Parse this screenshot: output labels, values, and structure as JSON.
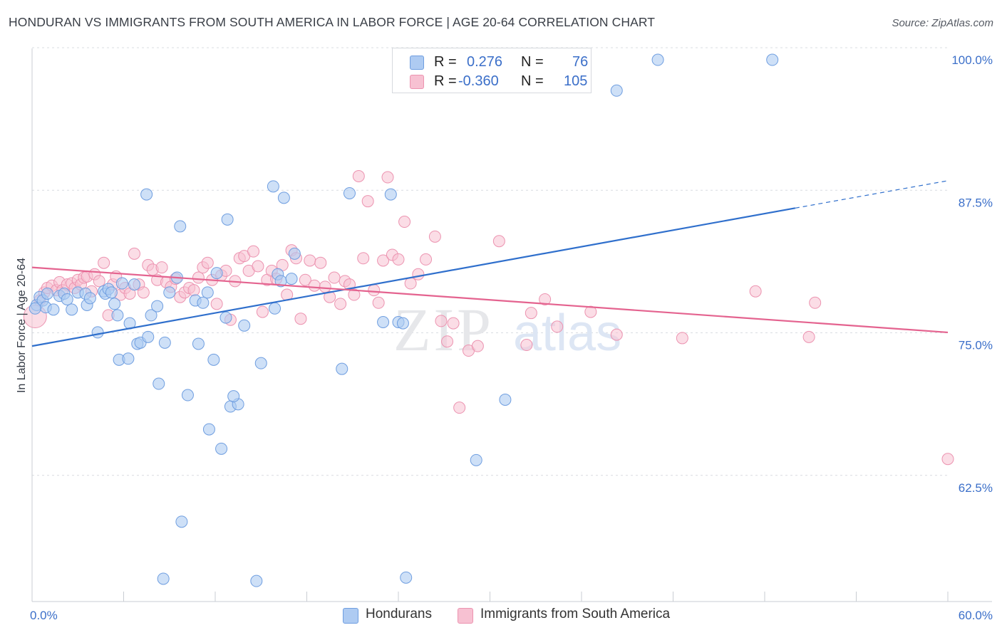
{
  "title": "HONDURAN VS IMMIGRANTS FROM SOUTH AMERICA IN LABOR FORCE | AGE 20-64 CORRELATION CHART",
  "source": "Source: ZipAtlas.com",
  "watermark": {
    "zip": "ZIP",
    "atlas": "atlas"
  },
  "legend": {
    "r_label": "R =",
    "n_label": "N =",
    "rows": [
      {
        "r": "0.276",
        "n": "76"
      },
      {
        "r": "-0.360",
        "n": "105"
      }
    ]
  },
  "bottom_legend": [
    "Hondurans",
    "Immigrants from South America"
  ],
  "colors": {
    "blue_fill": "#aecbf2",
    "blue_stroke": "#6f9ee0",
    "blue_line": "#2f6fcc",
    "pink_fill": "#f7c1d2",
    "pink_stroke": "#ec93b0",
    "pink_line": "#e4638f",
    "label": "#3b6fc9",
    "grid": "#d9dce1"
  },
  "chart_data": {
    "type": "scatter",
    "xlabel": "",
    "ylabel": "In Labor Force | Age 20-64",
    "xlim": [
      0,
      60
    ],
    "ylim": [
      52.5,
      101.5
    ],
    "x_tick_labels": [
      {
        "value": 0,
        "label": "0.0%"
      },
      {
        "value": 60,
        "label": "60.0%"
      }
    ],
    "y_tick_labels": [
      {
        "value": 100,
        "label": "100.0%"
      },
      {
        "value": 87.5,
        "label": "87.5%"
      },
      {
        "value": 75,
        "label": "75.0%"
      },
      {
        "value": 62.5,
        "label": "62.5%"
      }
    ],
    "x_minor_ticks": [
      6,
      12,
      18,
      24,
      30,
      36,
      42,
      48,
      54
    ],
    "grid": true,
    "legend_position": "top-center",
    "series": [
      {
        "name": "Hondurans",
        "r": 0.276,
        "n": 76,
        "trend": {
          "x0": 0,
          "y0": 74.9,
          "x1": 50,
          "y1": 87.0,
          "dash_to_x": 60,
          "dash_to_y": 89.4
        },
        "points": [
          [
            0.3,
            78.5
          ],
          [
            0.5,
            79.2
          ],
          [
            0.7,
            78.9
          ],
          [
            0.9,
            78.3
          ],
          [
            1.0,
            79.5
          ],
          [
            1.4,
            78.1
          ],
          [
            1.8,
            79.3
          ],
          [
            2.1,
            79.5
          ],
          [
            2.3,
            79.0
          ],
          [
            2.6,
            78.1
          ],
          [
            3.0,
            79.6
          ],
          [
            3.5,
            79.5
          ],
          [
            3.6,
            78.5
          ],
          [
            3.8,
            79.1
          ],
          [
            4.3,
            76.1
          ],
          [
            4.7,
            79.7
          ],
          [
            4.8,
            79.5
          ],
          [
            5.0,
            79.9
          ],
          [
            5.2,
            79.6
          ],
          [
            5.4,
            78.6
          ],
          [
            5.6,
            77.6
          ],
          [
            5.7,
            73.7
          ],
          [
            5.9,
            80.4
          ],
          [
            6.3,
            73.8
          ],
          [
            6.4,
            76.9
          ],
          [
            6.7,
            80.3
          ],
          [
            6.9,
            75.1
          ],
          [
            7.1,
            75.2
          ],
          [
            7.5,
            88.2
          ],
          [
            7.6,
            75.7
          ],
          [
            7.8,
            77.6
          ],
          [
            8.2,
            78.4
          ],
          [
            8.3,
            71.6
          ],
          [
            8.6,
            54.5
          ],
          [
            8.7,
            75.2
          ],
          [
            9.0,
            79.6
          ],
          [
            9.5,
            80.9
          ],
          [
            9.7,
            85.4
          ],
          [
            9.8,
            59.5
          ],
          [
            10.2,
            70.6
          ],
          [
            10.7,
            78.9
          ],
          [
            10.9,
            75.1
          ],
          [
            11.2,
            78.7
          ],
          [
            11.5,
            79.6
          ],
          [
            11.6,
            67.6
          ],
          [
            11.9,
            73.7
          ],
          [
            12.1,
            81.3
          ],
          [
            12.7,
            77.4
          ],
          [
            12.8,
            86.0
          ],
          [
            13.0,
            69.6
          ],
          [
            13.5,
            69.8
          ],
          [
            13.9,
            76.7
          ],
          [
            14.7,
            54.3
          ],
          [
            15.0,
            73.4
          ],
          [
            15.8,
            88.9
          ],
          [
            15.9,
            78.2
          ],
          [
            16.1,
            81.2
          ],
          [
            16.3,
            80.6
          ],
          [
            16.5,
            87.9
          ],
          [
            17.0,
            80.8
          ],
          [
            17.2,
            83.0
          ],
          [
            20.3,
            72.9
          ],
          [
            20.8,
            88.3
          ],
          [
            23.0,
            77.0
          ],
          [
            23.5,
            88.2
          ],
          [
            24.0,
            77.0
          ],
          [
            24.3,
            76.9
          ],
          [
            24.5,
            54.6
          ],
          [
            29.1,
            64.9
          ],
          [
            31.0,
            70.2
          ],
          [
            38.3,
            97.3
          ],
          [
            41.0,
            100.0
          ],
          [
            48.5,
            100.0
          ],
          [
            0.2,
            78.2
          ],
          [
            13.2,
            70.5
          ],
          [
            12.4,
            65.9
          ]
        ]
      },
      {
        "name": "Immigrants from South America",
        "r": -0.36,
        "n": 105,
        "trend": {
          "x0": 0,
          "y0": 81.8,
          "x1": 60,
          "y1": 76.1
        },
        "points": [
          [
            0.2,
            77.5
          ],
          [
            0.5,
            78.9
          ],
          [
            0.8,
            79.6
          ],
          [
            1.0,
            80.0
          ],
          [
            1.3,
            80.2
          ],
          [
            1.6,
            79.8
          ],
          [
            1.8,
            80.5
          ],
          [
            2.0,
            79.8
          ],
          [
            2.3,
            80.3
          ],
          [
            2.6,
            80.4
          ],
          [
            2.8,
            80.0
          ],
          [
            3.0,
            80.7
          ],
          [
            3.2,
            80.3
          ],
          [
            3.4,
            80.9
          ],
          [
            3.6,
            81.0
          ],
          [
            3.9,
            79.7
          ],
          [
            4.1,
            81.2
          ],
          [
            4.4,
            80.6
          ],
          [
            4.7,
            82.2
          ],
          [
            5.0,
            77.6
          ],
          [
            5.3,
            80.3
          ],
          [
            5.5,
            81.0
          ],
          [
            5.8,
            79.4
          ],
          [
            6.1,
            80.0
          ],
          [
            6.4,
            79.5
          ],
          [
            6.7,
            83.0
          ],
          [
            7.0,
            80.3
          ],
          [
            7.3,
            79.6
          ],
          [
            7.6,
            82.0
          ],
          [
            7.9,
            81.6
          ],
          [
            8.2,
            80.7
          ],
          [
            8.5,
            81.8
          ],
          [
            8.8,
            80.5
          ],
          [
            9.1,
            80.1
          ],
          [
            9.4,
            80.8
          ],
          [
            9.7,
            79.2
          ],
          [
            10.0,
            79.6
          ],
          [
            10.3,
            80.0
          ],
          [
            10.6,
            79.8
          ],
          [
            10.9,
            80.9
          ],
          [
            11.2,
            81.8
          ],
          [
            11.5,
            82.2
          ],
          [
            11.8,
            80.7
          ],
          [
            12.1,
            78.6
          ],
          [
            12.4,
            81.1
          ],
          [
            12.7,
            81.5
          ],
          [
            13.0,
            77.2
          ],
          [
            13.3,
            80.6
          ],
          [
            13.6,
            82.6
          ],
          [
            13.9,
            82.8
          ],
          [
            14.2,
            81.5
          ],
          [
            14.5,
            83.2
          ],
          [
            14.8,
            81.9
          ],
          [
            15.1,
            77.9
          ],
          [
            15.4,
            80.7
          ],
          [
            15.7,
            81.5
          ],
          [
            16.0,
            80.8
          ],
          [
            16.4,
            82.0
          ],
          [
            16.7,
            79.4
          ],
          [
            17.0,
            83.3
          ],
          [
            17.3,
            82.6
          ],
          [
            17.6,
            77.3
          ],
          [
            17.9,
            80.7
          ],
          [
            18.2,
            82.4
          ],
          [
            18.5,
            80.2
          ],
          [
            18.9,
            82.2
          ],
          [
            19.2,
            80.1
          ],
          [
            19.5,
            79.2
          ],
          [
            19.8,
            80.9
          ],
          [
            20.2,
            78.6
          ],
          [
            20.5,
            80.6
          ],
          [
            20.8,
            80.3
          ],
          [
            21.1,
            79.4
          ],
          [
            21.4,
            89.8
          ],
          [
            21.7,
            82.6
          ],
          [
            22.0,
            87.6
          ],
          [
            22.4,
            79.8
          ],
          [
            22.7,
            78.7
          ],
          [
            23.0,
            82.4
          ],
          [
            23.3,
            89.7
          ],
          [
            23.6,
            82.9
          ],
          [
            24.0,
            82.5
          ],
          [
            24.4,
            85.8
          ],
          [
            24.8,
            80.4
          ],
          [
            25.3,
            81.2
          ],
          [
            25.8,
            82.5
          ],
          [
            26.4,
            84.5
          ],
          [
            26.8,
            77.1
          ],
          [
            27.2,
            75.3
          ],
          [
            27.6,
            76.9
          ],
          [
            28.0,
            69.5
          ],
          [
            28.6,
            74.5
          ],
          [
            29.2,
            74.9
          ],
          [
            30.6,
            84.1
          ],
          [
            32.4,
            75.0
          ],
          [
            32.7,
            77.8
          ],
          [
            33.6,
            79.0
          ],
          [
            34.4,
            76.6
          ],
          [
            36.6,
            77.9
          ],
          [
            38.3,
            75.9
          ],
          [
            42.6,
            75.6
          ],
          [
            47.4,
            79.7
          ],
          [
            50.9,
            75.7
          ],
          [
            51.3,
            78.7
          ],
          [
            60.0,
            65.0
          ]
        ]
      }
    ]
  }
}
